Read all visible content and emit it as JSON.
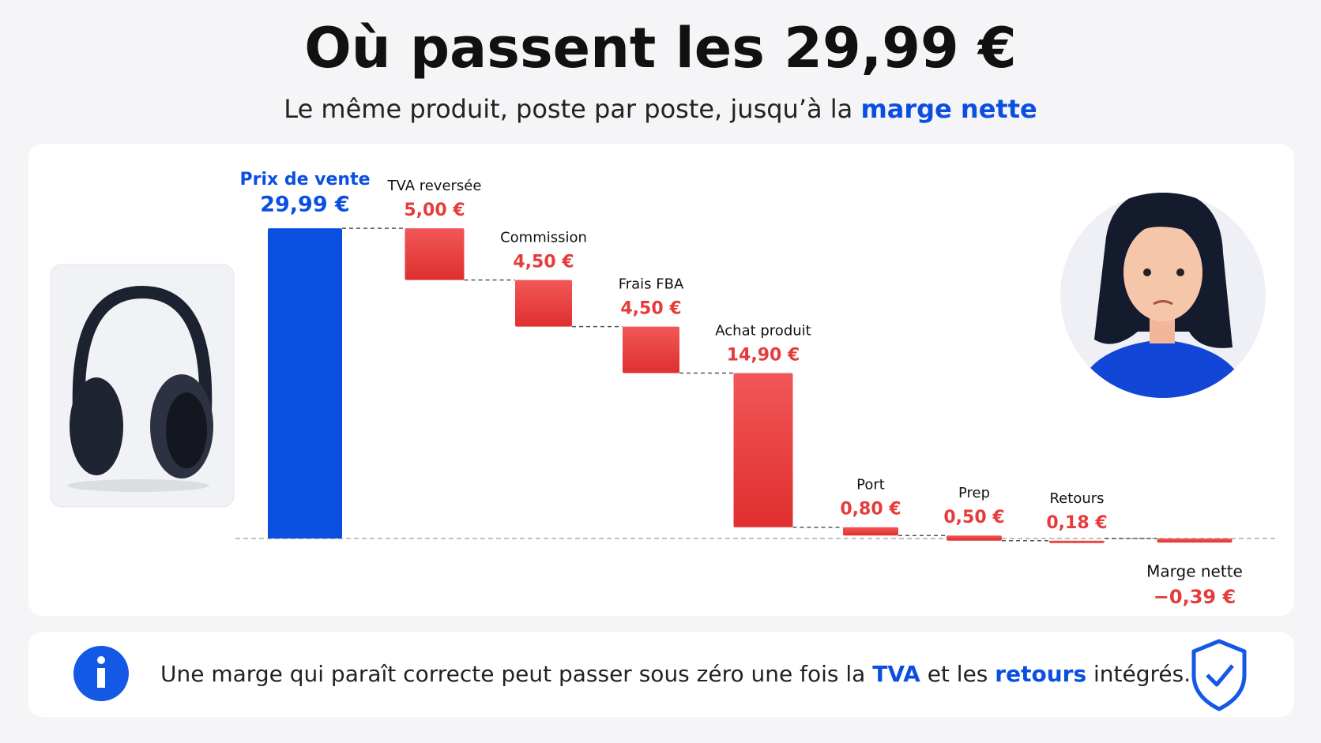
{
  "header": {
    "title": "Où passent les 29,99 €",
    "subtitle": [
      "Le même produit, poste par poste, jusqu’à la ",
      "marge nette"
    ]
  },
  "chart_data": {
    "type": "waterfall",
    "categories": [
      "Prix de vente",
      "TVA reversée",
      "Commission",
      "Frais FBA",
      "Achat produit",
      "Port",
      "Prep",
      "Retours",
      "Marge nette"
    ],
    "values": [
      29.99,
      5.0,
      4.5,
      4.5,
      14.9,
      0.8,
      0.5,
      0.18,
      -0.39
    ],
    "value_labels": [
      "29,99 €",
      "5,00 €",
      "4,50 €",
      "4,50 €",
      "14,90 €",
      "0,80 €",
      "0,50 €",
      "0,18 €",
      "−0,39 €"
    ],
    "colors": {
      "total": "#0b4fe0",
      "cost": "#e63b3b"
    }
  },
  "note": [
    "Une marge qui paraît correcte peut passer sous zéro une fois la ",
    "TVA",
    " et les ",
    "retours",
    " intégrés."
  ]
}
